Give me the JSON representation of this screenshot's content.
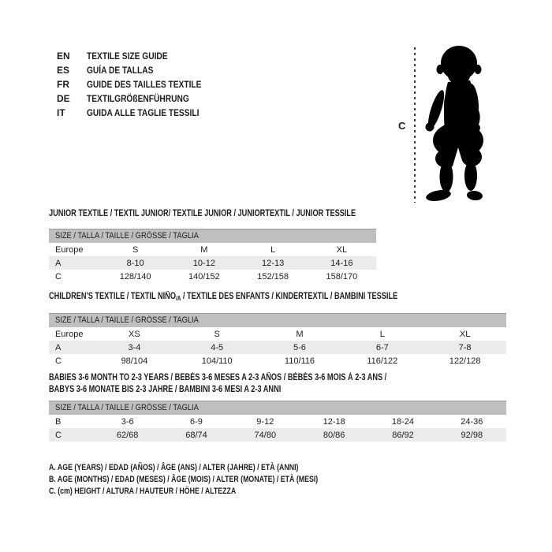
{
  "page": {
    "background_color": "#ffffff",
    "text_color": "#1d1d1b",
    "size_bar_color": "#bfbfbf",
    "alt_row_color": "#ebebeb"
  },
  "languages": [
    {
      "code": "EN",
      "text": "TEXTILE SIZE GUIDE"
    },
    {
      "code": "ES",
      "text": "GUÍA DE TALLAS"
    },
    {
      "code": "FR",
      "text": "GUIDE DES TAILLES TEXTILE"
    },
    {
      "code": "DE",
      "text": "TEXTILGRÖßENFÜHRUNG"
    },
    {
      "code": "IT",
      "text": "GUIDA ALLE TAGLIE TESSILI"
    }
  ],
  "figure": {
    "label": "C",
    "icon": "toddler-silhouette"
  },
  "sections": [
    {
      "title_lines": [
        "JUNIOR TEXTILE / TEXTIL JUNIOR/ TEXTILE JUNIOR / JUNIORTEXTIL / JUNIOR TESSILE"
      ],
      "size_bar": "SIZE / TALLA / TAILLE / GRÖSSE / TAGLIA",
      "rows": [
        [
          "Europe",
          "S",
          "M",
          "L",
          "XL"
        ],
        [
          "A",
          "8-10",
          "10-12",
          "12-13",
          "14-16"
        ],
        [
          "C",
          "128/140",
          "140/152",
          "152/158",
          "158/170"
        ]
      ]
    },
    {
      "title_parts": {
        "pre": "CHILDREN'S TEXTILE / TEXTIL NIÑO",
        "sub": "/A",
        "post": " / TEXTILE DES ENFANTS / KINDERTEXTIL / BAMBINI TESSILE"
      },
      "size_bar": "SIZE / TALLA / TAILLE / GRÖSSE / TAGLIA",
      "rows": [
        [
          "Europe",
          "XS",
          "S",
          "M",
          "L",
          "XL"
        ],
        [
          "A",
          "3-4",
          "4-5",
          "5-6",
          "6-7",
          "7-8"
        ],
        [
          "C",
          "98/104",
          "104/110",
          "110/116",
          "116/122",
          "122/128"
        ]
      ]
    },
    {
      "title_lines": [
        "BABIES 3-6 MONTH TO 2-3 YEARS / BEBÉS 3-6 MESES A 2-3 AÑOS / BÉBÉS 3-6 MOIS À 2-3 ANS /",
        "BABYS 3-6 MONATE BIS 2-3 JAHRE / BAMBINI 3-6 MESI A 2-3 ANNI"
      ],
      "size_bar": "SIZE / TALLA / TAILLE / GRÖSSE / TAGLIA",
      "rows": [
        [
          "B",
          "3-6",
          "6-9",
          "9-12",
          "12-18",
          "18-24",
          "24-36"
        ],
        [
          "C",
          "62/68",
          "68/74",
          "74/80",
          "80/86",
          "86/92",
          "92/98"
        ]
      ]
    }
  ],
  "notes": [
    "A. AGE (YEARS) / EDAD (AÑOS) / ÂGE (ANS) / ALTER (JAHRE) / ETÀ (ANNI)",
    "B. AGE (MONTHS) / EDAD (MESES) / ÂGE (MOIS) / ALTER (MONATE) / ETÀ (MESI)",
    "C. (cm) HEIGHT / ALTURA / HAUTEUR / HÖHE / ALTEZZA"
  ]
}
